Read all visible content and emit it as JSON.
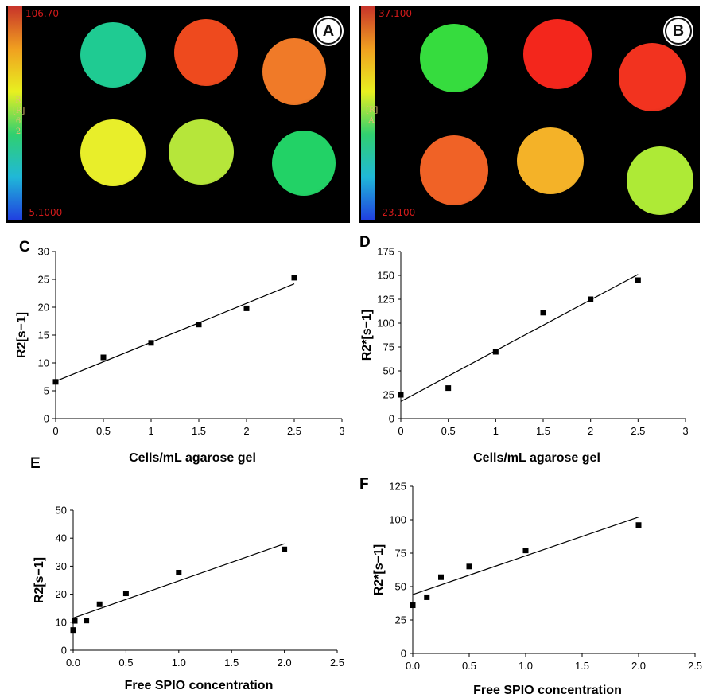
{
  "images": [
    {
      "id": "A",
      "badge": "A",
      "colorbar": {
        "max": "106.70",
        "min": "-5.1000",
        "param": [
          "R",
          "[R]",
          "6",
          "2"
        ]
      },
      "phantoms": [
        {
          "color": "#1fcb92"
        },
        {
          "color": "#ee4a1e"
        },
        {
          "color": "#f07a28"
        },
        {
          "color": "#e8ee2a"
        },
        {
          "color": "#b6e63a"
        },
        {
          "color": "#22d266"
        }
      ]
    },
    {
      "id": "B",
      "badge": "B",
      "colorbar": {
        "max": "37.100",
        "min": "-23.100",
        "param": [
          "[R]",
          "A"
        ]
      },
      "phantoms": [
        {
          "color": "#36dc3e"
        },
        {
          "color": "#f3261c"
        },
        {
          "color": "#f2331f"
        },
        {
          "color": "#f06226"
        },
        {
          "color": "#f4b228"
        },
        {
          "color": "#aeea36"
        }
      ]
    }
  ],
  "chart_data": [
    {
      "panel": "C",
      "type": "scatter",
      "xlabel": "Cells/mL agarose gel",
      "ylabel": "R2[s−1]",
      "xlim": [
        0,
        3
      ],
      "ylim": [
        0,
        30
      ],
      "xticks": [
        "0",
        "0.5",
        "1",
        "1.5",
        "2",
        "2.5",
        "3"
      ],
      "yticks": [
        "0",
        "5",
        "10",
        "15",
        "20",
        "25",
        "30"
      ],
      "points": [
        [
          0,
          6.6
        ],
        [
          0.5,
          11.0
        ],
        [
          1.0,
          13.6
        ],
        [
          1.5,
          16.9
        ],
        [
          2.0,
          19.8
        ],
        [
          2.5,
          25.3
        ]
      ],
      "trendline": [
        [
          0,
          6.7
        ],
        [
          2.5,
          24.2
        ]
      ]
    },
    {
      "panel": "D",
      "type": "scatter",
      "xlabel": "Cells/mL agarose gel",
      "ylabel": "R2*[s−1]",
      "xlim": [
        0,
        3
      ],
      "ylim": [
        0,
        175
      ],
      "xticks": [
        "0",
        "0.5",
        "1",
        "1.5",
        "2",
        "2.5",
        "3"
      ],
      "yticks": [
        "0",
        "25",
        "50",
        "75",
        "100",
        "125",
        "150",
        "175"
      ],
      "points": [
        [
          0,
          25
        ],
        [
          0.5,
          32
        ],
        [
          1.0,
          70
        ],
        [
          1.5,
          111
        ],
        [
          2.0,
          125
        ],
        [
          2.5,
          145
        ]
      ],
      "trendline": [
        [
          0,
          18
        ],
        [
          2.5,
          151
        ]
      ]
    },
    {
      "panel": "E",
      "type": "scatter",
      "xlabel": "Free SPIO concentration",
      "ylabel": "R2[s−1]",
      "xlim": [
        0,
        2.5
      ],
      "ylim": [
        0,
        50
      ],
      "xticks": [
        "0.0",
        "0.5",
        "1.0",
        "1.5",
        "2.0",
        "2.5"
      ],
      "yticks": [
        "0",
        "10",
        "20",
        "30",
        "40",
        "50"
      ],
      "points": [
        [
          0,
          7.2
        ],
        [
          0.015,
          10.5
        ],
        [
          0.125,
          10.6
        ],
        [
          0.25,
          16.4
        ],
        [
          0.5,
          20.3
        ],
        [
          1.0,
          27.7
        ],
        [
          2.0,
          36.0
        ]
      ],
      "trendline": [
        [
          0,
          11.5
        ],
        [
          2.0,
          38.0
        ]
      ]
    },
    {
      "panel": "F",
      "type": "scatter",
      "xlabel": "Free SPIO concentration",
      "ylabel": "R2*[s−1]",
      "xlim": [
        0,
        2.5
      ],
      "ylim": [
        0,
        125
      ],
      "xticks": [
        "0.0",
        "0.5",
        "1.0",
        "1.5",
        "2.0",
        "2.5"
      ],
      "yticks": [
        "0",
        "25",
        "50",
        "75",
        "100",
        "125"
      ],
      "points": [
        [
          0,
          36
        ],
        [
          0.125,
          42
        ],
        [
          0.25,
          57
        ],
        [
          0.5,
          65
        ],
        [
          1.0,
          77
        ],
        [
          2.0,
          96
        ]
      ],
      "trendline": [
        [
          0,
          44
        ],
        [
          2.0,
          102
        ]
      ]
    }
  ]
}
